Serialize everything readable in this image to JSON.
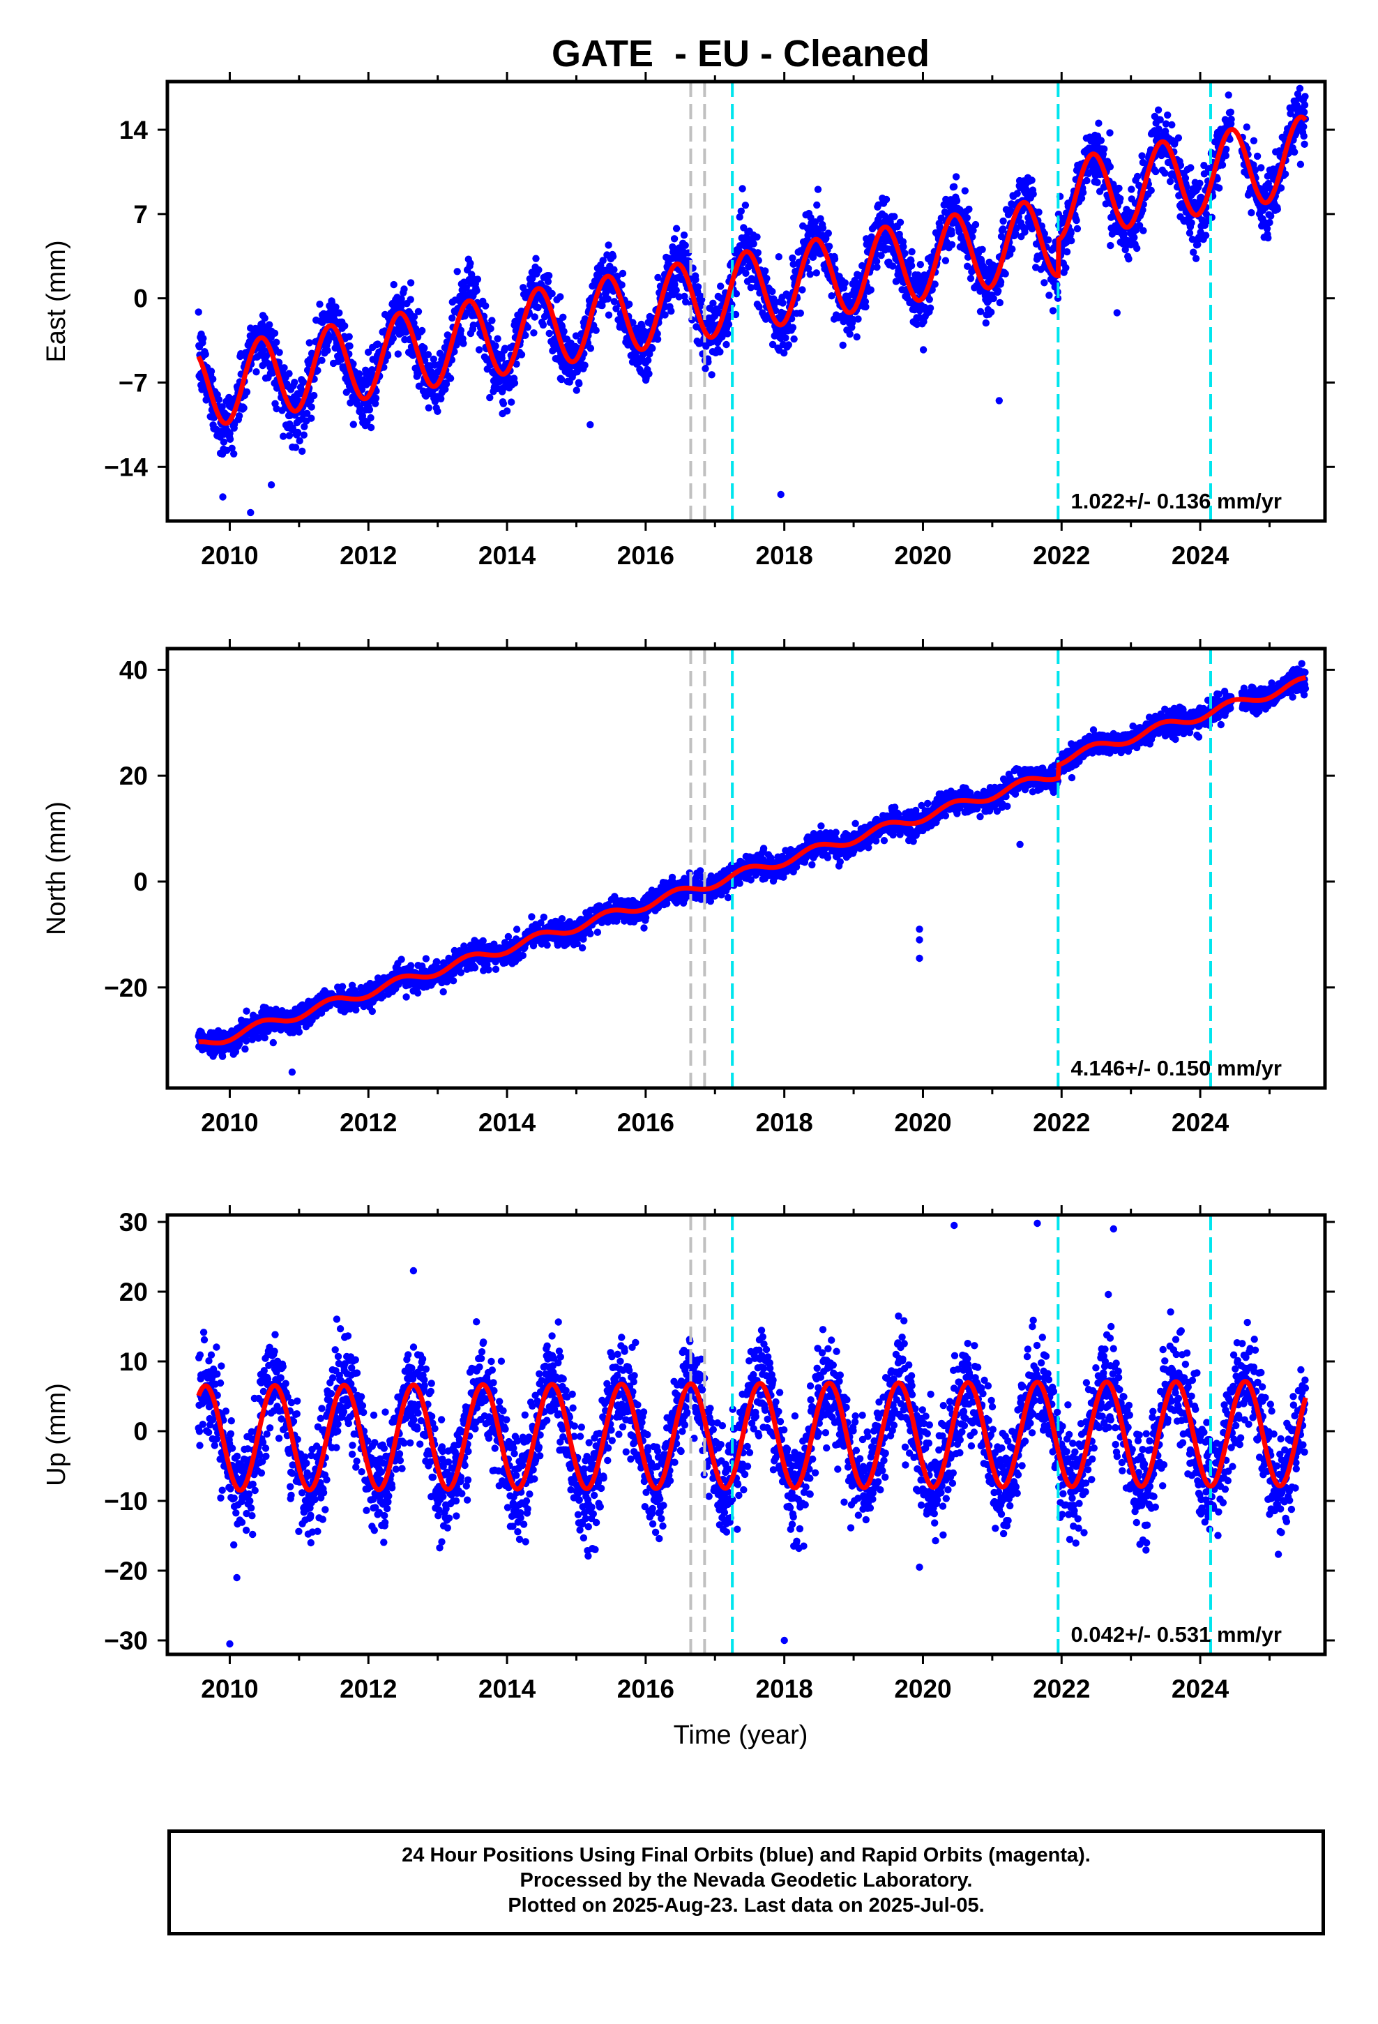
{
  "title": "GATE  - EU - Cleaned",
  "xlabel": "Time (year)",
  "footer": {
    "line1": "24 Hour Positions Using Final Orbits (blue) and Rapid Orbits (magenta).",
    "line2": "Processed by the Nevada Geodetic Laboratory.",
    "line3": "Plotted on 2025-Aug-23. Last data on 2025-Jul-05."
  },
  "colors": {
    "points": "#0000ff",
    "fit": "#ff0000",
    "event_lines_cyan": "#00e5ee",
    "event_lines_gray": "#c0c0c0"
  },
  "chart_data": [
    {
      "type": "scatter",
      "panel": "east",
      "ylabel": "East (mm)",
      "xlim": [
        2009.1,
        2025.8
      ],
      "ylim": [
        -18.5,
        18
      ],
      "xticks": [
        "2010",
        "2012",
        "2014",
        "2016",
        "2018",
        "2020",
        "2022",
        "2024"
      ],
      "yticks": [
        "14",
        "7",
        "0",
        "−7",
        "−14"
      ],
      "yticks_values": [
        14,
        7,
        0,
        -7,
        -14
      ],
      "gray_event_lines": [
        2016.65,
        2016.85
      ],
      "cyan_event_lines": [
        2017.25,
        2021.95,
        2024.15
      ],
      "rate_annotation": "1.022+/- 0.136 mm/yr",
      "data_start": 2009.55,
      "data_end": 2025.52,
      "trend": {
        "ref_year": 2009.55,
        "offset": -7.5,
        "rate": 1.022
      },
      "seasonal": {
        "amplitude": 3.3,
        "phase_year": 2010.45,
        "period": 1.0
      },
      "offsets": [
        {
          "year": 2021.95,
          "shift": 3.0
        }
      ],
      "scatter_sd": 1.5,
      "outliers": [
        [
          2009.9,
          -16.5
        ],
        [
          2010.3,
          -17.8
        ],
        [
          2010.6,
          -15.5
        ],
        [
          2017.95,
          -16.3
        ],
        [
          2015.2,
          -10.5
        ],
        [
          2021.1,
          -8.5
        ],
        [
          2022.8,
          -1.2
        ]
      ]
    },
    {
      "type": "scatter",
      "panel": "north",
      "ylabel": "North (mm)",
      "xlim": [
        2009.1,
        2025.8
      ],
      "ylim": [
        -39,
        44
      ],
      "xticks": [
        "2010",
        "2012",
        "2014",
        "2016",
        "2018",
        "2020",
        "2022",
        "2024"
      ],
      "yticks": [
        "40",
        "20",
        "0",
        "−20"
      ],
      "yticks_values": [
        40,
        20,
        0,
        -20
      ],
      "gray_event_lines": [
        2016.65,
        2016.85
      ],
      "cyan_event_lines": [
        2017.25,
        2021.95,
        2024.15
      ],
      "rate_annotation": "4.146+/- 0.150 mm/yr",
      "data_start": 2009.55,
      "data_end": 2025.52,
      "trend": {
        "ref_year": 2009.55,
        "offset": -31,
        "rate": 4.146
      },
      "seasonal": {
        "amplitude": 0.9,
        "phase_year": 2010.45,
        "period": 1.0
      },
      "offsets": [
        {
          "year": 2021.95,
          "shift": 2.5
        }
      ],
      "scatter_sd": 1.3,
      "outliers": [
        [
          2019.95,
          -9
        ],
        [
          2019.95,
          -11
        ],
        [
          2019.95,
          -14.5
        ],
        [
          2010.9,
          -36
        ],
        [
          2021.4,
          7
        ]
      ]
    },
    {
      "type": "scatter",
      "panel": "up",
      "ylabel": "Up (mm)",
      "xlim": [
        2009.1,
        2025.8
      ],
      "ylim": [
        -32,
        31
      ],
      "xticks": [
        "2010",
        "2012",
        "2014",
        "2016",
        "2018",
        "2020",
        "2022",
        "2024"
      ],
      "yticks": [
        "30",
        "20",
        "10",
        "0",
        "−10",
        "−20",
        "−30"
      ],
      "yticks_values": [
        30,
        20,
        10,
        0,
        -10,
        -20,
        -30
      ],
      "gray_event_lines": [
        2016.65,
        2016.85
      ],
      "cyan_event_lines": [
        2017.25,
        2021.95,
        2024.15
      ],
      "rate_annotation": "0.042+/- 0.531 mm/yr",
      "data_start": 2009.55,
      "data_end": 2025.52,
      "trend": {
        "ref_year": 2009.55,
        "offset": -1.0,
        "rate": 0.042
      },
      "seasonal": {
        "amplitude": 7.5,
        "phase_year": 2009.65,
        "period": 1.0
      },
      "offsets": [],
      "scatter_sd": 4.2,
      "outliers": [
        [
          2010.0,
          -30.5
        ],
        [
          2018.0,
          -30
        ],
        [
          2020.45,
          29.5
        ],
        [
          2021.65,
          29.8
        ],
        [
          2022.75,
          29
        ],
        [
          2012.65,
          23
        ],
        [
          2019.95,
          -19.5
        ]
      ]
    }
  ]
}
